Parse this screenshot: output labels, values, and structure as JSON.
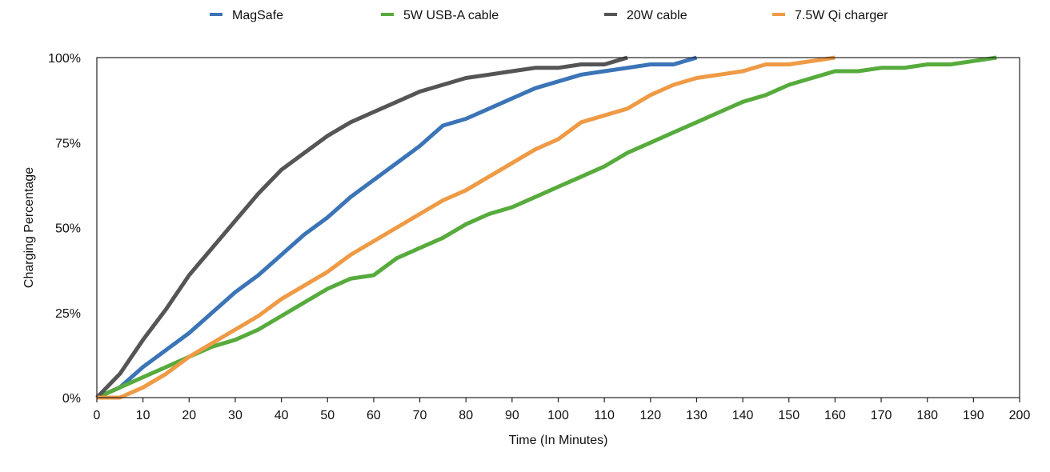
{
  "chart_data": {
    "type": "line",
    "title": "",
    "xlabel": "Time (In Minutes)",
    "ylabel": "Charging Percentage",
    "xlim": [
      0,
      200
    ],
    "ylim": [
      0,
      100
    ],
    "x_ticks": [
      0,
      10,
      20,
      30,
      40,
      50,
      60,
      70,
      80,
      90,
      100,
      110,
      120,
      130,
      140,
      150,
      160,
      170,
      180,
      190,
      200
    ],
    "x_tick_labels": [
      "0",
      "10",
      "20",
      "30",
      "40",
      "50",
      "60",
      "70",
      "80",
      "90",
      "100",
      "110",
      "120",
      "130",
      "140",
      "150",
      "160",
      "170",
      "180",
      "190",
      "200"
    ],
    "y_ticks": [
      0,
      25,
      50,
      75,
      100
    ],
    "y_tick_labels": [
      "0%",
      "25%",
      "50%",
      "75%",
      "100%"
    ],
    "grid": false,
    "legend_position": "top",
    "series": [
      {
        "name": "MagSafe",
        "color": "#3b74b7",
        "x": [
          0,
          5,
          10,
          15,
          20,
          25,
          30,
          35,
          40,
          45,
          50,
          55,
          60,
          65,
          70,
          75,
          80,
          85,
          90,
          95,
          100,
          105,
          110,
          115,
          120,
          125,
          130
        ],
        "values": [
          0,
          3,
          9,
          14,
          19,
          25,
          31,
          36,
          42,
          48,
          53,
          59,
          64,
          69,
          74,
          80,
          82,
          85,
          88,
          91,
          93,
          95,
          96,
          97,
          98,
          98,
          100
        ]
      },
      {
        "name": "5W USB-A cable",
        "color": "#56ab3c",
        "x": [
          0,
          5,
          10,
          15,
          20,
          25,
          30,
          35,
          40,
          45,
          50,
          55,
          60,
          65,
          70,
          75,
          80,
          85,
          90,
          95,
          100,
          105,
          110,
          115,
          120,
          125,
          130,
          135,
          140,
          145,
          150,
          155,
          160,
          165,
          170,
          175,
          180,
          185,
          190,
          195
        ],
        "values": [
          0,
          3,
          6,
          9,
          12,
          15,
          17,
          20,
          24,
          28,
          32,
          35,
          36,
          41,
          44,
          47,
          51,
          54,
          56,
          59,
          62,
          65,
          68,
          72,
          75,
          78,
          81,
          84,
          87,
          89,
          92,
          94,
          96,
          96,
          97,
          97,
          98,
          98,
          99,
          100
        ]
      },
      {
        "name": "20W cable",
        "color": "#555555",
        "x": [
          0,
          5,
          10,
          15,
          20,
          25,
          30,
          35,
          40,
          45,
          50,
          55,
          60,
          65,
          70,
          75,
          80,
          85,
          90,
          95,
          100,
          105,
          110,
          115
        ],
        "values": [
          0,
          7,
          17,
          26,
          36,
          44,
          52,
          60,
          67,
          72,
          77,
          81,
          84,
          87,
          90,
          92,
          94,
          95,
          96,
          97,
          97,
          98,
          98,
          100
        ]
      },
      {
        "name": "7.5W Qi charger",
        "color": "#ef9a45",
        "x": [
          0,
          5,
          10,
          15,
          20,
          25,
          30,
          35,
          40,
          45,
          50,
          55,
          60,
          65,
          70,
          75,
          80,
          85,
          90,
          95,
          100,
          105,
          110,
          115,
          120,
          125,
          130,
          135,
          140,
          145,
          150,
          155,
          160
        ],
        "values": [
          0,
          0,
          3,
          7,
          12,
          16,
          20,
          24,
          29,
          33,
          37,
          42,
          46,
          50,
          54,
          58,
          61,
          65,
          69,
          73,
          76,
          81,
          83,
          85,
          89,
          92,
          94,
          95,
          96,
          98,
          98,
          99,
          100
        ]
      }
    ]
  }
}
